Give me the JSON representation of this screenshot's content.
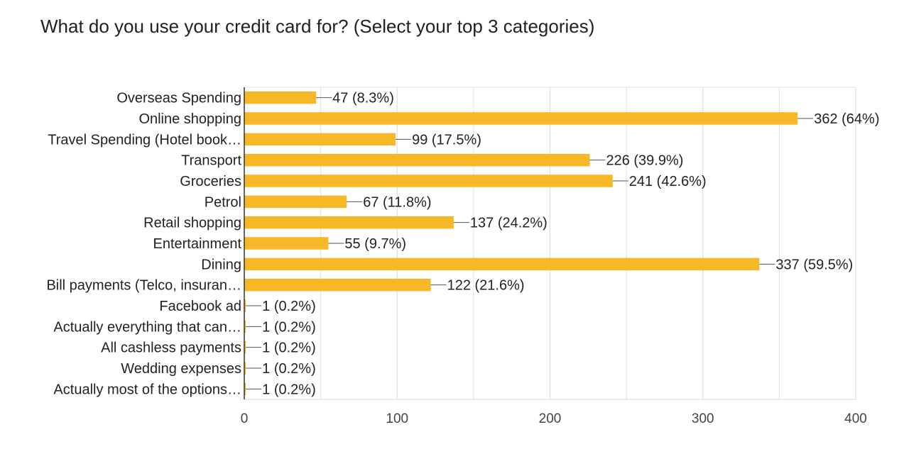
{
  "chart_data": {
    "type": "bar",
    "orientation": "horizontal",
    "title": "What do you use your credit card for? (Select your top 3 categories)",
    "categories": [
      "Overseas Spending",
      "Online shopping",
      "Travel Spending (Hotel book…",
      "Transport",
      "Groceries",
      "Petrol",
      "Retail shopping",
      "Entertainment",
      "Dining",
      "Bill payments (Telco, insuran…",
      "Facebook ad",
      "Actually everything that can…",
      "All cashless payments",
      "Wedding expenses",
      "Actually most of the options…"
    ],
    "values": [
      47,
      362,
      99,
      226,
      241,
      67,
      137,
      55,
      337,
      122,
      1,
      1,
      1,
      1,
      1
    ],
    "value_labels": [
      "47 (8.3%)",
      "362 (64%)",
      "99 (17.5%)",
      "226 (39.9%)",
      "241 (42.6%)",
      "67 (11.8%)",
      "137 (24.2%)",
      "55 (9.7%)",
      "337 (59.5%)",
      "122 (21.6%)",
      "1 (0.2%)",
      "1 (0.2%)",
      "1 (0.2%)",
      "1 (0.2%)",
      "1 (0.2%)"
    ],
    "xlim": [
      0,
      400
    ],
    "x_ticks": [
      "0",
      "100",
      "200",
      "300",
      "400"
    ],
    "xlabel": "",
    "ylabel": "",
    "grid": true,
    "bar_color": "#f6b827",
    "grid_color": "#e0e0e0",
    "axis_color": "#333333"
  }
}
